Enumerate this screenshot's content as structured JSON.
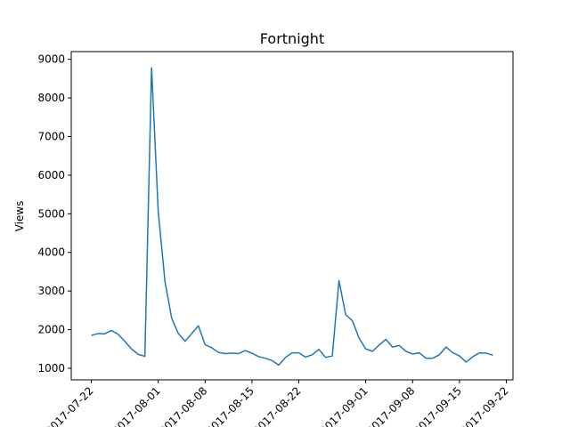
{
  "chart_data": {
    "type": "line",
    "title": "Fortnight",
    "xlabel": "",
    "ylabel": "Views",
    "ylim": [
      700,
      9200
    ],
    "xlim": [
      "2017-07-19",
      "2017-09-23"
    ],
    "grid": false,
    "line_color": "#1f77b4",
    "yticks": [
      1000,
      2000,
      3000,
      4000,
      5000,
      6000,
      7000,
      8000,
      9000
    ],
    "xticks": [
      "2017-07-22",
      "2017-08-01",
      "2017-08-08",
      "2017-08-15",
      "2017-08-22",
      "2017-09-01",
      "2017-09-08",
      "2017-09-15",
      "2017-09-22"
    ],
    "x": [
      "2017-07-22",
      "2017-07-23",
      "2017-07-24",
      "2017-07-25",
      "2017-07-26",
      "2017-07-27",
      "2017-07-28",
      "2017-07-29",
      "2017-07-30",
      "2017-07-31",
      "2017-08-01",
      "2017-08-02",
      "2017-08-03",
      "2017-08-04",
      "2017-08-05",
      "2017-08-06",
      "2017-08-07",
      "2017-08-08",
      "2017-08-09",
      "2017-08-10",
      "2017-08-11",
      "2017-08-12",
      "2017-08-13",
      "2017-08-14",
      "2017-08-15",
      "2017-08-16",
      "2017-08-17",
      "2017-08-18",
      "2017-08-19",
      "2017-08-20",
      "2017-08-21",
      "2017-08-22",
      "2017-08-23",
      "2017-08-24",
      "2017-08-25",
      "2017-08-26",
      "2017-08-27",
      "2017-08-28",
      "2017-08-29",
      "2017-08-30",
      "2017-08-31",
      "2017-09-01",
      "2017-09-02",
      "2017-09-03",
      "2017-09-04",
      "2017-09-05",
      "2017-09-06",
      "2017-09-07",
      "2017-09-08",
      "2017-09-09",
      "2017-09-10",
      "2017-09-11",
      "2017-09-12",
      "2017-09-13",
      "2017-09-14",
      "2017-09-15",
      "2017-09-16",
      "2017-09-17",
      "2017-09-18",
      "2017-09-19",
      "2017-09-20"
    ],
    "series": [
      {
        "values": [
          1850,
          1900,
          1890,
          1980,
          1880,
          1700,
          1500,
          1360,
          1310,
          8780,
          5050,
          3250,
          2300,
          1900,
          1700,
          1900,
          2100,
          1610,
          1530,
          1410,
          1380,
          1390,
          1380,
          1460,
          1390,
          1300,
          1260,
          1200,
          1080,
          1280,
          1400,
          1400,
          1290,
          1350,
          1490,
          1280,
          1320,
          3270,
          2390,
          2230,
          1780,
          1500,
          1440,
          1600,
          1750,
          1550,
          1590,
          1440,
          1370,
          1400,
          1260,
          1260,
          1350,
          1550,
          1400,
          1320,
          1160,
          1300,
          1400,
          1390,
          1340
        ]
      }
    ]
  }
}
